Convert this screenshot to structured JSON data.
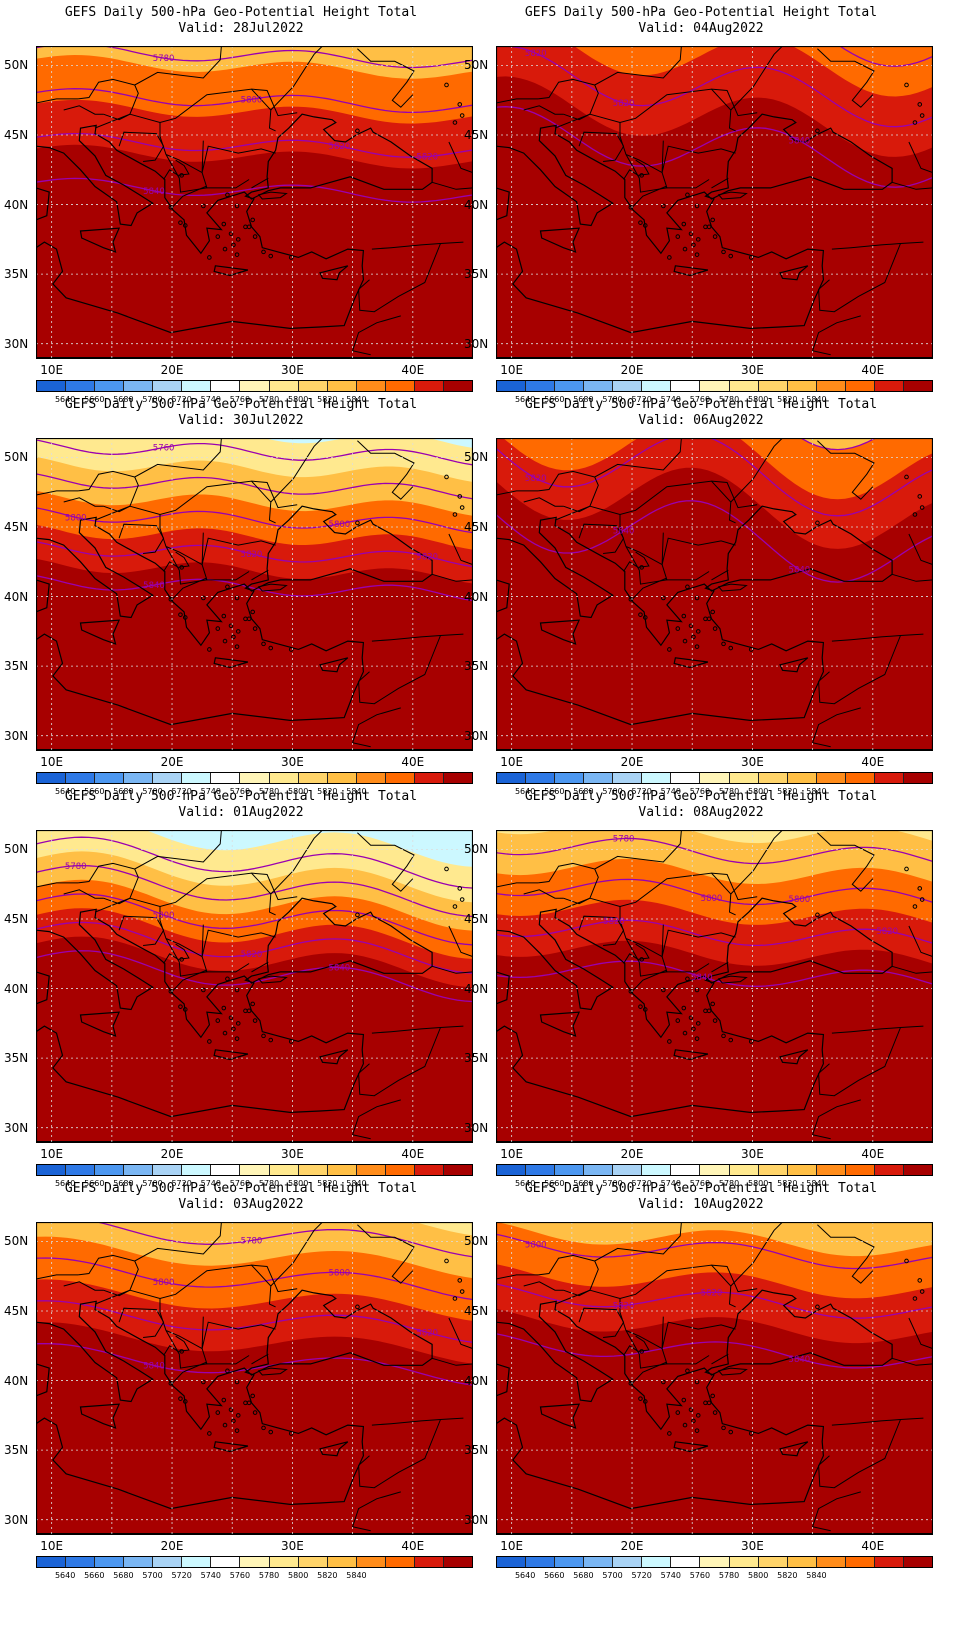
{
  "panels": [
    {
      "title": "GEFS Daily 500-hPa Geo-Potential Height Total",
      "valid": "Valid: 28Jul2022",
      "contour_labels": [
        "5780",
        "5780",
        "5800",
        "5820",
        "5820",
        "5840"
      ],
      "bands": [
        [
          "#ffe98f",
          5770
        ],
        [
          "#ffbf45",
          5785
        ],
        [
          "#ff6a00",
          5805
        ],
        [
          "#d81a0b",
          5825
        ],
        [
          "#a70000",
          5900
        ]
      ]
    },
    {
      "title": "GEFS Daily 500-hPa Geo-Potential Height Total",
      "valid": "Valid: 04Aug2022",
      "contour_labels": [
        "5820",
        "5820",
        "5800",
        "5840"
      ],
      "bands": [
        [
          "#ffbf45",
          5790
        ],
        [
          "#ff6a00",
          5810
        ],
        [
          "#d81a0b",
          5830
        ],
        [
          "#a70000",
          5900
        ]
      ]
    },
    {
      "title": "GEFS Daily 500-hPa Geo-Potential Height Total",
      "valid": "Valid: 30Jul2022",
      "contour_labels": [
        "5800",
        "5760",
        "5820",
        "5800",
        "5820",
        "5840"
      ],
      "bands": [
        [
          "#ccf8ff",
          5750
        ],
        [
          "#ffe98f",
          5770
        ],
        [
          "#ffbf45",
          5790
        ],
        [
          "#ff6a00",
          5810
        ],
        [
          "#d81a0b",
          5830
        ],
        [
          "#a70000",
          5900
        ]
      ]
    },
    {
      "title": "GEFS Daily 500-hPa Geo-Potential Height Total",
      "valid": "Valid: 06Aug2022",
      "contour_labels": [
        "5820",
        "5840",
        "5800",
        "5840"
      ],
      "bands": [
        [
          "#ffbf45",
          5800
        ],
        [
          "#ff6a00",
          5815
        ],
        [
          "#d81a0b",
          5830
        ],
        [
          "#a70000",
          5900
        ]
      ]
    },
    {
      "title": "GEFS Daily 500-hPa Geo-Potential Height Total",
      "valid": "Valid: 01Aug2022",
      "contour_labels": [
        "5780",
        "5800",
        "5820",
        "5840"
      ],
      "bands": [
        [
          "#ccf8ff",
          5745
        ],
        [
          "#ffe98f",
          5770
        ],
        [
          "#ffbf45",
          5790
        ],
        [
          "#ff6a00",
          5810
        ],
        [
          "#d81a0b",
          5830
        ],
        [
          "#a70000",
          5900
        ]
      ]
    },
    {
      "title": "GEFS Daily 500-hPa Geo-Potential Height Total",
      "valid": "Valid: 08Aug2022",
      "contour_labels": [
        "5760",
        "5780",
        "5800",
        "5800",
        "5820",
        "5820",
        "5840"
      ],
      "bands": [
        [
          "#ffe98f",
          5770
        ],
        [
          "#ffbf45",
          5790
        ],
        [
          "#ff6a00",
          5810
        ],
        [
          "#d81a0b",
          5830
        ],
        [
          "#a70000",
          5900
        ]
      ]
    },
    {
      "title": "GEFS Daily 500-hPa Geo-Potential Height Total",
      "valid": "Valid: 03Aug2022",
      "contour_labels": [
        "5780",
        "5800",
        "5780",
        "5800",
        "5820",
        "5840"
      ],
      "bands": [
        [
          "#ffe98f",
          5770
        ],
        [
          "#ffbf45",
          5790
        ],
        [
          "#ff6a00",
          5810
        ],
        [
          "#d81a0b",
          5830
        ],
        [
          "#a70000",
          5900
        ]
      ]
    },
    {
      "title": "GEFS Daily 500-hPa Geo-Potential Height Total",
      "valid": "Valid: 10Aug2022",
      "contour_labels": [
        "5800",
        "5820",
        "5820",
        "5840"
      ],
      "bands": [
        [
          "#ffe98f",
          5775
        ],
        [
          "#ffbf45",
          5795
        ],
        [
          "#ff6a00",
          5812
        ],
        [
          "#d81a0b",
          5830
        ],
        [
          "#a70000",
          5900
        ]
      ]
    }
  ],
  "lat_ticks": [
    "50N",
    "45N",
    "40N",
    "35N",
    "30N"
  ],
  "lon_ticks": [
    "10E",
    "20E",
    "30E",
    "40E"
  ],
  "colorbar": {
    "colors": [
      "#1a63d6",
      "#2e79e6",
      "#4c97f0",
      "#7ab6f3",
      "#a9d3f5",
      "#ccf8ff",
      "#ffffff",
      "#fff5b8",
      "#ffe98f",
      "#ffd46a",
      "#ffbf45",
      "#ff8c1a",
      "#ff6a00",
      "#d81a0b",
      "#a70000"
    ],
    "labels": [
      "5640",
      "5660",
      "5680",
      "5700",
      "5720",
      "5740",
      "5760",
      "5780",
      "5800",
      "5820",
      "5840"
    ]
  },
  "contour_color": "#9a00b0"
}
